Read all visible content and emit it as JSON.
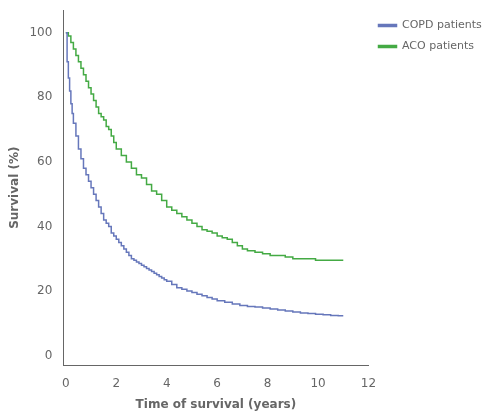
{
  "chart_data": {
    "type": "step",
    "xlabel": "Time of survival (years)",
    "ylabel": "Survival (%)",
    "xlim": [
      -0.1,
      12
    ],
    "ylim": [
      -3,
      107
    ],
    "xticks": [
      0,
      2,
      4,
      6,
      8,
      10,
      12
    ],
    "yticks": [
      0,
      20,
      40,
      60,
      80,
      100
    ],
    "grid": false,
    "legend": "right",
    "series": [
      {
        "name": "COPD patients",
        "color": "#6677BB",
        "x": [
          0,
          0.05,
          0.1,
          0.15,
          0.2,
          0.25,
          0.3,
          0.4,
          0.5,
          0.6,
          0.7,
          0.8,
          0.9,
          1.0,
          1.1,
          1.2,
          1.3,
          1.4,
          1.5,
          1.6,
          1.7,
          1.8,
          1.9,
          2.0,
          2.1,
          2.2,
          2.3,
          2.4,
          2.5,
          2.6,
          2.7,
          2.8,
          2.9,
          3.0,
          3.1,
          3.2,
          3.3,
          3.4,
          3.5,
          3.6,
          3.7,
          3.8,
          3.9,
          4.0,
          4.2,
          4.4,
          4.6,
          4.8,
          5.0,
          5.2,
          5.4,
          5.6,
          5.8,
          6.0,
          6.3,
          6.6,
          6.9,
          7.2,
          7.5,
          7.8,
          8.1,
          8.4,
          8.7,
          9.0,
          9.3,
          9.6,
          9.9,
          10.2,
          10.5,
          10.8,
          11.0
        ],
        "values": [
          100,
          91,
          86,
          82,
          78,
          75,
          72,
          68,
          64,
          61,
          58,
          56,
          54,
          52,
          50,
          48,
          46,
          44,
          42,
          41,
          40,
          38,
          37,
          36,
          35,
          34,
          33,
          32,
          31,
          30,
          29.5,
          29,
          28.5,
          28,
          27.5,
          27,
          26.5,
          26,
          25.5,
          25,
          24.5,
          24,
          23.5,
          23,
          22,
          21,
          20.5,
          20,
          19.5,
          19,
          18.5,
          18,
          17.5,
          17,
          16.5,
          16,
          15.5,
          15.2,
          15.0,
          14.7,
          14.4,
          14.1,
          13.8,
          13.5,
          13.2,
          13.0,
          12.8,
          12.6,
          12.4,
          12.3,
          12.3
        ]
      },
      {
        "name": "ACO patients",
        "color": "#44AA44",
        "x": [
          0,
          0.1,
          0.2,
          0.3,
          0.4,
          0.5,
          0.6,
          0.7,
          0.8,
          0.9,
          1.0,
          1.1,
          1.2,
          1.3,
          1.4,
          1.5,
          1.6,
          1.7,
          1.8,
          1.9,
          2.0,
          2.2,
          2.4,
          2.6,
          2.8,
          3.0,
          3.2,
          3.4,
          3.6,
          3.8,
          4.0,
          4.2,
          4.4,
          4.6,
          4.8,
          5.0,
          5.2,
          5.4,
          5.6,
          5.8,
          6.0,
          6.2,
          6.4,
          6.6,
          6.8,
          7.0,
          7.2,
          7.5,
          7.8,
          8.1,
          8.4,
          8.7,
          9.0,
          9.3,
          9.6,
          9.9,
          10.2,
          10.5,
          10.8,
          11.0
        ],
        "values": [
          100,
          99,
          97,
          95,
          93,
          91,
          89,
          87,
          85,
          83,
          81,
          79,
          77,
          75,
          74,
          73,
          71,
          70,
          68,
          66,
          64,
          62,
          60,
          58,
          56,
          55,
          53,
          51,
          50,
          48,
          46,
          45,
          44,
          43,
          42,
          41,
          40,
          39,
          38.5,
          38,
          37,
          36.5,
          36,
          35,
          34,
          33,
          32.5,
          32,
          31.5,
          31,
          31,
          30.5,
          30,
          30,
          30,
          29.5,
          29.5,
          29.5,
          29.5,
          29.5
        ]
      }
    ]
  }
}
